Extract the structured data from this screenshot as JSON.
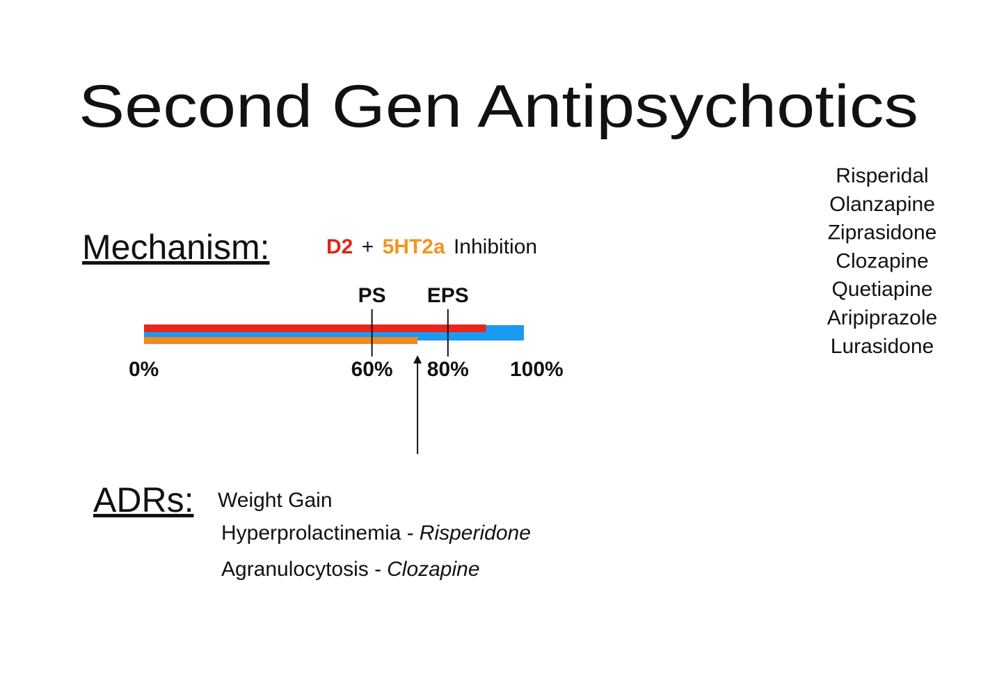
{
  "title": "Second Gen Antipsychotics",
  "drugs": [
    "Risperidal",
    "Olanzapine",
    "Ziprasidone",
    "Clozapine",
    "Quetiapine",
    "Aripiprazole",
    "Lurasidone"
  ],
  "mechanism": {
    "label": "Mechanism:",
    "receptor_1": "D2",
    "plus": "+",
    "receptor_2": "5HT2a",
    "action": "Inhibition"
  },
  "occupancy": {
    "xlim": [
      0,
      100
    ],
    "xticks": [
      {
        "value": 0,
        "label": "0%"
      },
      {
        "value": 60,
        "label": "60%"
      },
      {
        "value": 80,
        "label": "80%"
      },
      {
        "value": 100,
        "label": "100%"
      }
    ],
    "markers": [
      {
        "label": "PS",
        "value": 60
      },
      {
        "label": "EPS",
        "value": 80
      }
    ],
    "bars": [
      {
        "color": "#1a9af0",
        "value": 100
      },
      {
        "color": "#e8261c",
        "value": 90
      },
      {
        "color": "#f08a1e",
        "value": 72
      }
    ],
    "arrow": 72
  },
  "adrs": {
    "label": "ADRs:",
    "items": [
      {
        "text": "Weight Gain"
      },
      {
        "text": "Hyperprolactinemia -",
        "drug": "Risperidone"
      },
      {
        "text": "Agranulocytosis -",
        "drug": "Clozapine"
      }
    ]
  }
}
